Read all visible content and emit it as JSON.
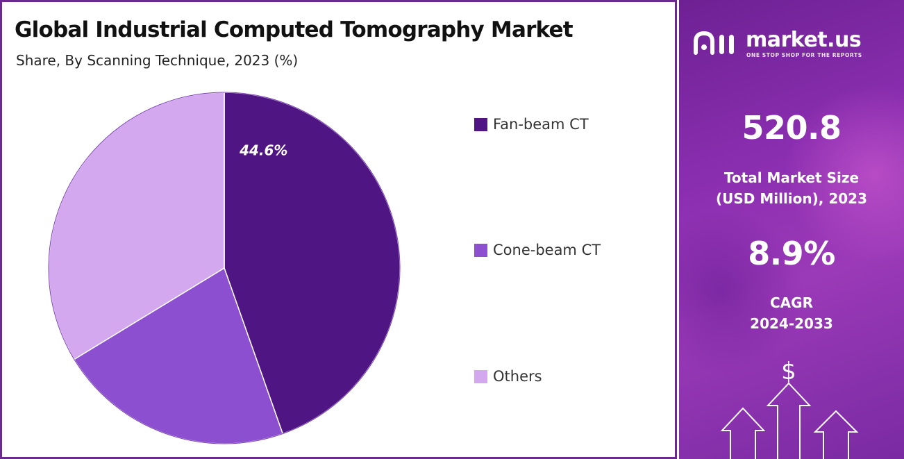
{
  "title": "Global Industrial Computed Tomography Market",
  "subtitle": "Share, By Scanning Technique, 2023 (%)",
  "chart_data": {
    "type": "pie",
    "title": "Global Industrial Computed Tomography Market",
    "subtitle": "Share, By Scanning Technique, 2023 (%)",
    "categories": [
      "Fan-beam CT",
      "Cone-beam CT",
      "Others"
    ],
    "values": [
      44.6,
      21.7,
      33.7
    ],
    "colors": [
      "#4f1582",
      "#8b4fd0",
      "#d3a8ee"
    ],
    "data_labels": [
      "44.6%",
      "",
      ""
    ],
    "legend_position": "right",
    "start_angle_deg": 0,
    "direction": "clockwise"
  },
  "legend": {
    "items": [
      {
        "label": "Fan-beam CT",
        "color": "#4f1582"
      },
      {
        "label": "Cone-beam CT",
        "color": "#8b4fd0"
      },
      {
        "label": "Others",
        "color": "#d3a8ee"
      }
    ]
  },
  "sidebar": {
    "logo_text": "market.us",
    "logo_tagline": "ONE STOP SHOP FOR THE REPORTS",
    "market_size_value": "520.8",
    "market_size_label_line1": "Total Market Size",
    "market_size_label_line2": "(USD Million), 2023",
    "cagr_value": "8.9%",
    "cagr_label_line1": "CAGR",
    "cagr_label_line2": "2024-2033",
    "dollar_icon": "$"
  }
}
